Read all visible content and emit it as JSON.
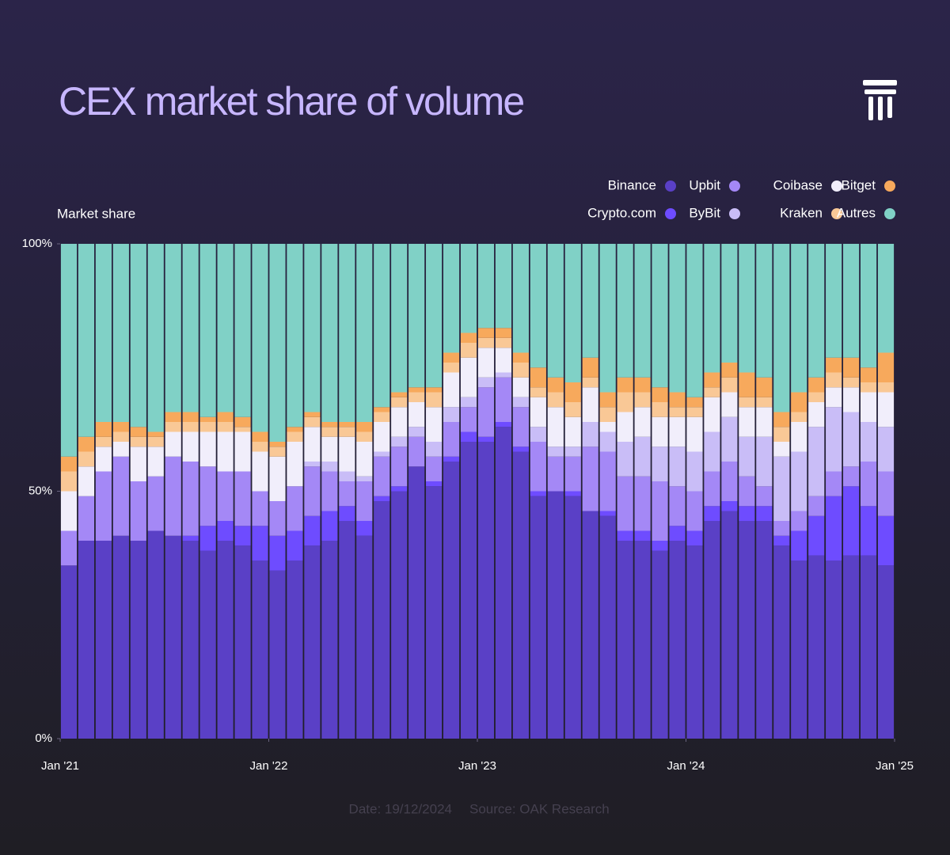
{
  "chart_data": {
    "type": "stacked_bar",
    "title": "CEX market share of volume",
    "y_label": "Market share",
    "date": "Date: 19/12/2024",
    "source": "Source: OAK Research",
    "xlim": [
      0,
      48
    ],
    "xticks": [
      {
        "value": 0,
        "label": "Jan '21"
      },
      {
        "value": 12,
        "label": "Jan '22"
      },
      {
        "value": 24,
        "label": "Jan '23"
      },
      {
        "value": 36,
        "label": "Jan '24"
      },
      {
        "value": 48,
        "label": "Jan '25"
      }
    ],
    "ylim": [
      0,
      100
    ],
    "yticks": [
      {
        "value": 0,
        "label": "0%"
      },
      {
        "value": 50,
        "label": "50%"
      },
      {
        "value": 100,
        "label": "100%"
      }
    ],
    "series": [
      {
        "name": "Binance",
        "color": "#5a40c6",
        "values": [
          35,
          40,
          40,
          41,
          40,
          42,
          41,
          40,
          38,
          40,
          39,
          36,
          34,
          36,
          39,
          40,
          44,
          41,
          48,
          50,
          55,
          51,
          56,
          60,
          60,
          63,
          58,
          49,
          50,
          49,
          46,
          45,
          40,
          40,
          38,
          40,
          39,
          44,
          46,
          44,
          44,
          39,
          36,
          37,
          36,
          37,
          37,
          35
        ]
      },
      {
        "name": "Crypto.com",
        "color": "#6e4cff",
        "values": [
          0,
          0,
          0,
          0,
          0,
          0,
          0,
          1,
          5,
          4,
          4,
          7,
          7,
          6,
          6,
          6,
          3,
          3,
          1,
          1,
          0,
          1,
          1,
          2,
          1,
          1,
          1,
          1,
          0,
          1,
          0,
          1,
          2,
          2,
          2,
          3,
          3,
          3,
          2,
          3,
          3,
          2,
          6,
          8,
          13,
          14,
          10,
          10
        ]
      },
      {
        "name": "Upbit",
        "color": "#a488f6",
        "values": [
          7,
          9,
          14,
          16,
          12,
          11,
          16,
          15,
          12,
          10,
          11,
          7,
          7,
          9,
          10,
          8,
          5,
          8,
          8,
          8,
          6,
          5,
          7,
          5,
          10,
          9,
          8,
          10,
          7,
          7,
          13,
          12,
          11,
          11,
          12,
          8,
          8,
          7,
          8,
          6,
          4,
          3,
          4,
          4,
          5,
          4,
          9,
          9
        ]
      },
      {
        "name": "ByBit",
        "color": "#c9bdf7",
        "values": [
          0,
          0,
          0,
          0,
          0,
          0,
          0,
          0,
          0,
          0,
          0,
          0,
          0,
          0,
          1,
          2,
          2,
          1,
          1,
          2,
          2,
          3,
          3,
          2,
          2,
          1,
          2,
          3,
          2,
          2,
          5,
          4,
          7,
          8,
          7,
          8,
          8,
          8,
          9,
          8,
          10,
          13,
          12,
          14,
          13,
          11,
          8,
          9
        ]
      },
      {
        "name": "Coibase",
        "color": "#f1eefb",
        "values": [
          8,
          6,
          5,
          3,
          7,
          6,
          5,
          6,
          7,
          8,
          8,
          8,
          9,
          9,
          7,
          5,
          7,
          7,
          6,
          6,
          5,
          7,
          7,
          8,
          6,
          5,
          4,
          6,
          8,
          6,
          7,
          2,
          6,
          6,
          6,
          6,
          7,
          7,
          5,
          6,
          6,
          3,
          6,
          5,
          4,
          5,
          6,
          7
        ]
      },
      {
        "name": "Kraken",
        "color": "#f9c896",
        "values": [
          4,
          3,
          2,
          2,
          2,
          2,
          2,
          2,
          2,
          2,
          1,
          2,
          2,
          2,
          2,
          2,
          2,
          2,
          2,
          2,
          2,
          3,
          2,
          3,
          2,
          2,
          3,
          2,
          3,
          3,
          2,
          3,
          4,
          3,
          3,
          2,
          2,
          2,
          3,
          2,
          2,
          3,
          2,
          2,
          3,
          2,
          2,
          2
        ]
      },
      {
        "name": "Bitget",
        "color": "#f7a95c",
        "values": [
          3,
          3,
          3,
          2,
          2,
          1,
          2,
          2,
          1,
          2,
          2,
          2,
          1,
          1,
          1,
          1,
          1,
          2,
          1,
          1,
          1,
          1,
          2,
          2,
          2,
          2,
          2,
          4,
          3,
          4,
          4,
          3,
          3,
          3,
          3,
          3,
          2,
          3,
          3,
          5,
          4,
          3,
          4,
          3,
          3,
          4,
          3,
          6
        ]
      },
      {
        "name": "Autres",
        "color": "#80d1c6",
        "values": [
          43,
          39,
          36,
          36,
          37,
          38,
          34,
          34,
          35,
          34,
          35,
          38,
          40,
          37,
          34,
          36,
          36,
          36,
          33,
          30,
          29,
          29,
          22,
          18,
          17,
          17,
          22,
          25,
          27,
          28,
          23,
          30,
          27,
          27,
          29,
          30,
          31,
          26,
          24,
          26,
          27,
          34,
          30,
          27,
          23,
          23,
          25,
          22
        ]
      }
    ]
  }
}
